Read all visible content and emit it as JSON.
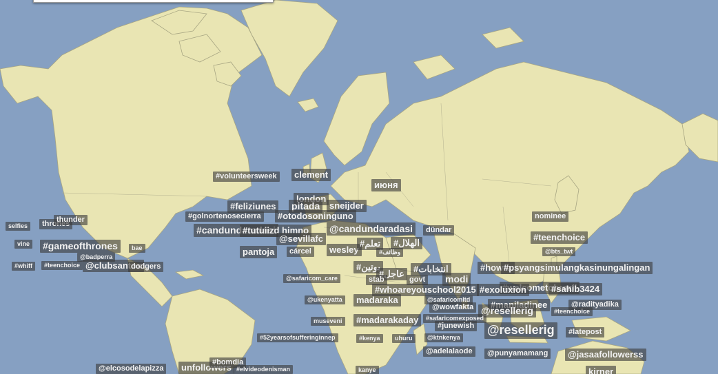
{
  "map": {
    "water_color": "#86a0c2",
    "land_color": "#e9e5b3",
    "border_color": "#a8a683",
    "tag_bg": "rgba(60,60,60,0.62)"
  },
  "trends": [
    "#volunteersweek",
    "clement",
    "июня",
    "london",
    "#feliziunes",
    "pitada",
    "sneijder",
    "#golnortenosecierra",
    "#otodosoninguno",
    "nominee",
    "selfies",
    "thrones",
    "thunder",
    "#candundaradasi",
    "#tutuiizd himno",
    "@candundaradasi",
    "dündar",
    "#teenchoice",
    "@sevillafc",
    "vine",
    "#gameofthrones",
    "bae",
    "pantoja",
    "cárcel",
    "wesley",
    "#تعلم",
    "#الهلال",
    "#وظائف",
    "@bts_twt",
    "@badperra",
    "#whiff",
    "#teenchoice",
    "@clubsantos",
    "dodgers",
    "#بوتين",
    "#عاجل",
    "#انتخابات",
    "#howto",
    "#psyangsimulangkasinungalingan",
    "@safaricom_care",
    "stab",
    "govt",
    "modi",
    "#whoareyouschool2015",
    "#welcometobrazil",
    "#exoluxion",
    "#sahib3424",
    "@ukenyatta",
    "madaraka",
    "@safaricomltd",
    "@wowfakta",
    "#maniladinee",
    "@radityadika",
    "@resellerig",
    "#teenchoice",
    "museveni",
    "#madarakaday",
    "#safaricomexposed",
    "#junewish",
    "@resellerig",
    "#latepost",
    "#52yearsofsufferinginnep",
    "#kenya",
    "uhuru",
    "@ktnkenya",
    "@adelalaode",
    "@punyamamang",
    "@jasaafollowerss",
    "@elcosodelapizza",
    "unfollowers",
    "#bomdia",
    "#elvideodenisman",
    "kanye",
    "kirner"
  ]
}
